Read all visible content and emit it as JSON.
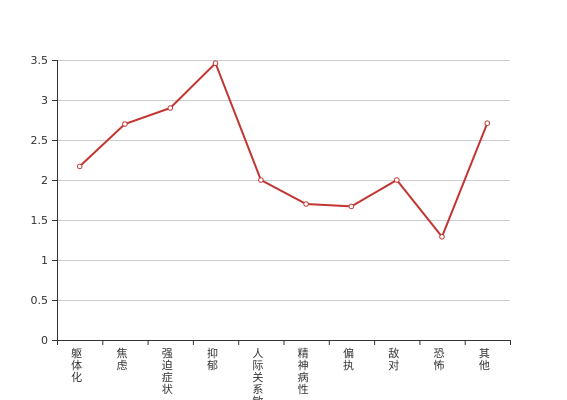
{
  "chart_data": {
    "type": "line",
    "title": "",
    "xlabel": "",
    "ylabel": "",
    "categories": [
      "躯体化",
      "焦虑",
      "强迫症状",
      "抑郁",
      "人际关系敏感",
      "精神病性",
      "偏执",
      "敌对",
      "恐怖",
      "其他"
    ],
    "series": [
      {
        "values": [
          2.17,
          2.7,
          2.9,
          3.46,
          2.0,
          1.7,
          1.67,
          2.0,
          1.29,
          2.71
        ]
      }
    ],
    "ylim": [
      0,
      3.5
    ],
    "y_ticks": [
      "0",
      "0.5",
      "1",
      "1.5",
      "2",
      "2.5",
      "3",
      "3.5"
    ],
    "grid": true,
    "legend": "none"
  },
  "colors": {
    "line": "#c23531",
    "marker_fill": "#ffffff",
    "grid": "#cccccc",
    "axis": "#333333",
    "text": "#333333"
  }
}
